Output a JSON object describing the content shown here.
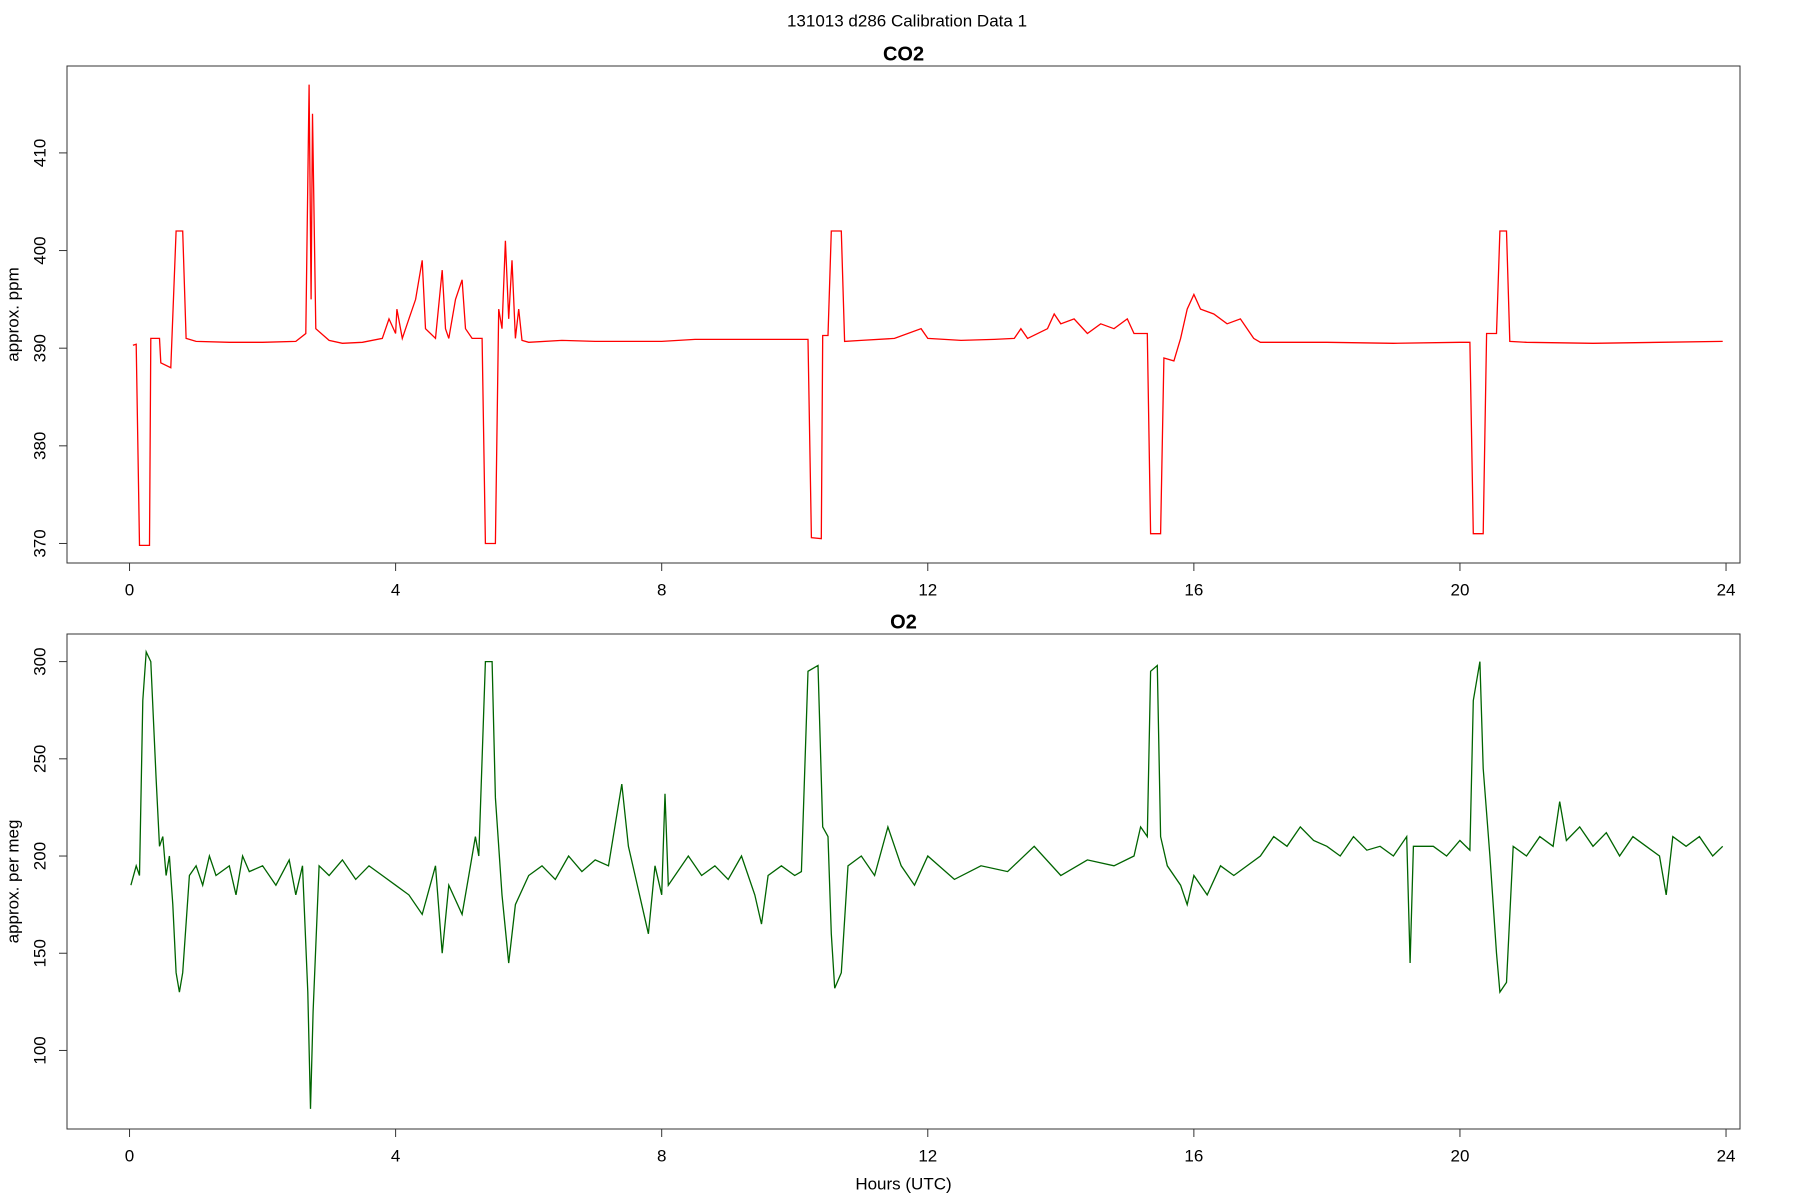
{
  "title": "131013   d286   Calibration Data 1",
  "chart_data": [
    {
      "type": "line",
      "title": "CO2",
      "ylabel": "approx. ppm",
      "color": "#ff0000",
      "xlim": [
        -0.94,
        24.21
      ],
      "ylim": [
        368,
        418.9
      ],
      "xticks": [
        0,
        4,
        8,
        12,
        16,
        20,
        24
      ],
      "yticks": [
        370,
        380,
        390,
        400,
        410
      ],
      "x": [
        0.05,
        0.1,
        0.15,
        0.3,
        0.32,
        0.45,
        0.47,
        0.62,
        0.7,
        0.8,
        0.85,
        1,
        1.5,
        2,
        2.5,
        2.65,
        2.7,
        2.73,
        2.75,
        2.8,
        3,
        3.2,
        3.5,
        3.8,
        3.9,
        4,
        4.02,
        4.1,
        4.2,
        4.3,
        4.4,
        4.45,
        4.6,
        4.7,
        4.75,
        4.8,
        4.9,
        5,
        5.05,
        5.15,
        5.3,
        5.35,
        5.5,
        5.55,
        5.6,
        5.65,
        5.7,
        5.75,
        5.8,
        5.85,
        5.9,
        6,
        6.5,
        7,
        8,
        8.5,
        9,
        10,
        10.2,
        10.25,
        10.4,
        10.42,
        10.5,
        10.55,
        10.7,
        10.75,
        11,
        11.5,
        11.9,
        12,
        12.5,
        13,
        13.3,
        13.4,
        13.5,
        13.8,
        13.9,
        14,
        14.2,
        14.4,
        14.6,
        14.8,
        15,
        15.1,
        15.3,
        15.35,
        15.5,
        15.55,
        15.7,
        15.8,
        15.9,
        16,
        16.1,
        16.3,
        16.5,
        16.7,
        16.9,
        17,
        18,
        19,
        20,
        20.15,
        20.2,
        20.35,
        20.4,
        20.55,
        20.6,
        20.7,
        20.75,
        21,
        22,
        23,
        23.95
      ],
      "values": [
        390.3,
        390.4,
        369.8,
        369.8,
        391,
        391,
        388.5,
        388,
        402,
        402,
        391,
        390.7,
        390.6,
        390.6,
        390.7,
        391.5,
        417,
        395,
        414,
        392,
        390.8,
        390.5,
        390.6,
        391,
        393,
        391.5,
        394,
        391,
        393,
        395,
        399,
        392,
        391,
        398,
        392,
        391,
        395,
        397,
        392,
        391,
        391,
        370,
        370,
        394,
        392,
        401,
        393,
        399,
        391,
        394,
        390.8,
        390.6,
        390.8,
        390.7,
        390.7,
        390.9,
        390.9,
        390.9,
        390.9,
        370.6,
        370.5,
        391.3,
        391.3,
        402,
        402,
        390.7,
        390.8,
        391,
        392,
        391,
        390.8,
        390.9,
        391,
        392,
        391,
        392,
        393.5,
        392.5,
        393,
        391.5,
        392.5,
        392,
        393,
        391.5,
        391.5,
        371,
        371,
        389,
        388.7,
        391,
        394,
        395.5,
        394,
        393.5,
        392.5,
        393,
        391,
        390.6,
        390.6,
        390.5,
        390.6,
        390.6,
        371,
        371,
        391.5,
        391.5,
        402,
        402,
        390.7,
        390.6,
        390.5,
        390.6,
        390.7
      ]
    },
    {
      "type": "line",
      "title": "O2",
      "ylabel": "approx. per meg",
      "xlabel": "Hours (UTC)",
      "color": "#006400",
      "xlim": [
        -0.94,
        24.21
      ],
      "ylim": [
        59.6,
        314.2
      ],
      "xticks": [
        0,
        4,
        8,
        12,
        16,
        20,
        24
      ],
      "yticks": [
        100,
        150,
        200,
        250,
        300
      ],
      "x": [
        0.02,
        0.1,
        0.15,
        0.2,
        0.25,
        0.32,
        0.4,
        0.45,
        0.5,
        0.55,
        0.6,
        0.65,
        0.7,
        0.75,
        0.8,
        0.9,
        1,
        1.1,
        1.2,
        1.3,
        1.5,
        1.6,
        1.7,
        1.8,
        2,
        2.2,
        2.4,
        2.5,
        2.6,
        2.68,
        2.72,
        2.76,
        2.85,
        3,
        3.2,
        3.4,
        3.6,
        3.8,
        4,
        4.2,
        4.4,
        4.6,
        4.7,
        4.8,
        5,
        5.1,
        5.2,
        5.25,
        5.35,
        5.45,
        5.5,
        5.6,
        5.7,
        5.8,
        6,
        6.2,
        6.4,
        6.6,
        6.8,
        7,
        7.2,
        7.4,
        7.5,
        7.6,
        7.8,
        7.9,
        8,
        8.05,
        8.1,
        8.4,
        8.6,
        8.8,
        9,
        9.2,
        9.4,
        9.5,
        9.6,
        9.8,
        10,
        10.1,
        10.2,
        10.35,
        10.42,
        10.5,
        10.55,
        10.6,
        10.7,
        10.8,
        11,
        11.2,
        11.4,
        11.6,
        11.8,
        12,
        12.4,
        12.8,
        13.2,
        13.6,
        14,
        14.4,
        14.8,
        15.1,
        15.2,
        15.3,
        15.35,
        15.45,
        15.5,
        15.6,
        15.8,
        15.9,
        16,
        16.2,
        16.4,
        16.6,
        17,
        17.2,
        17.4,
        17.6,
        17.8,
        18,
        18.2,
        18.4,
        18.6,
        18.8,
        19,
        19.2,
        19.25,
        19.3,
        19.6,
        19.8,
        20,
        20.15,
        20.2,
        20.3,
        20.35,
        20.45,
        20.55,
        20.6,
        20.7,
        20.8,
        21,
        21.2,
        21.4,
        21.5,
        21.6,
        21.8,
        22,
        22.2,
        22.4,
        22.6,
        22.8,
        23,
        23.1,
        23.2,
        23.4,
        23.6,
        23.8,
        23.95
      ],
      "values": [
        185,
        195,
        190,
        280,
        305,
        300,
        240,
        205,
        210,
        190,
        200,
        175,
        140,
        130,
        140,
        190,
        195,
        185,
        200,
        190,
        195,
        180,
        200,
        192,
        195,
        185,
        198,
        180,
        195,
        130,
        70,
        120,
        195,
        190,
        198,
        188,
        195,
        190,
        185,
        180,
        170,
        195,
        150,
        185,
        170,
        190,
        210,
        200,
        300,
        300,
        230,
        180,
        145,
        175,
        190,
        195,
        188,
        200,
        192,
        198,
        195,
        237,
        205,
        190,
        160,
        195,
        180,
        232,
        185,
        200,
        190,
        195,
        188,
        200,
        180,
        165,
        190,
        195,
        190,
        192,
        295,
        298,
        215,
        210,
        160,
        132,
        140,
        195,
        200,
        190,
        215,
        195,
        185,
        200,
        188,
        195,
        192,
        205,
        190,
        198,
        195,
        200,
        215,
        210,
        295,
        298,
        210,
        195,
        185,
        175,
        190,
        180,
        195,
        190,
        200,
        210,
        205,
        215,
        208,
        205,
        200,
        210,
        203,
        205,
        200,
        210,
        145,
        205,
        205,
        200,
        208,
        203,
        280,
        300,
        245,
        200,
        150,
        130,
        135,
        205,
        200,
        210,
        205,
        228,
        208,
        215,
        205,
        212,
        200,
        210,
        205,
        200,
        180,
        210,
        205,
        210,
        200,
        205
      ]
    }
  ]
}
